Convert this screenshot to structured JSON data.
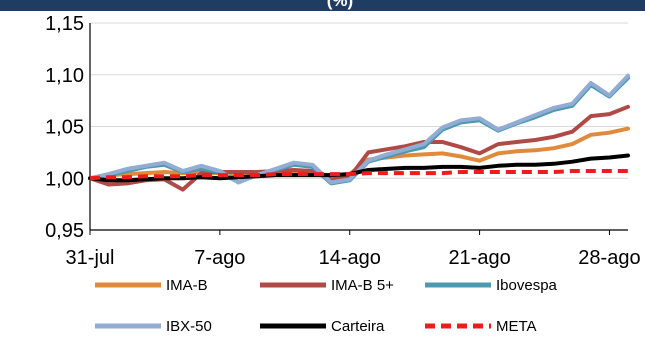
{
  "chart_data": {
    "type": "line",
    "title": "(%)",
    "xlabel": "",
    "ylabel": "",
    "x_ticks": [
      "31-jul",
      "7-ago",
      "14-ago",
      "21-ago",
      "28-ago"
    ],
    "y_ticks": [
      "0,95",
      "1,00",
      "1,05",
      "1,10",
      "1,15"
    ],
    "ylim": [
      0.95,
      1.15
    ],
    "x_range_days": [
      0,
      29
    ],
    "grid": "horizontal",
    "legend_position": "bottom",
    "x": [
      0,
      1,
      2,
      3,
      4,
      5,
      6,
      7,
      8,
      9,
      10,
      11,
      12,
      13,
      14,
      15,
      16,
      17,
      18,
      19,
      20,
      21,
      22,
      23,
      24,
      25,
      26,
      27,
      28,
      29
    ],
    "series": [
      {
        "name": "IMA-B",
        "color": "#e08a3c",
        "dashed": false,
        "width": 4,
        "values": [
          1.0,
          1.003,
          1.004,
          1.005,
          1.006,
          1.005,
          1.006,
          1.005,
          1.005,
          1.005,
          1.005,
          1.005,
          1.004,
          1.003,
          1.004,
          1.018,
          1.02,
          1.022,
          1.023,
          1.024,
          1.021,
          1.017,
          1.024,
          1.026,
          1.027,
          1.029,
          1.033,
          1.042,
          1.044,
          1.048
        ]
      },
      {
        "name": "IMA-B 5+",
        "color": "#b04a46",
        "dashed": false,
        "width": 4,
        "values": [
          1.0,
          0.994,
          0.995,
          0.998,
          0.999,
          0.989,
          1.005,
          1.006,
          1.006,
          1.006,
          1.007,
          1.008,
          1.007,
          0.999,
          1.001,
          1.025,
          1.028,
          1.031,
          1.035,
          1.035,
          1.03,
          1.024,
          1.033,
          1.035,
          1.037,
          1.04,
          1.045,
          1.06,
          1.062,
          1.069
        ]
      },
      {
        "name": "Ibovespa",
        "color": "#4b9ab0",
        "dashed": false,
        "width": 4,
        "values": [
          1.0,
          1.003,
          1.007,
          1.011,
          1.013,
          1.006,
          1.009,
          1.006,
          0.996,
          1.003,
          1.008,
          1.013,
          1.011,
          0.995,
          0.998,
          1.016,
          1.021,
          1.026,
          1.03,
          1.047,
          1.054,
          1.056,
          1.046,
          1.053,
          1.059,
          1.066,
          1.07,
          1.09,
          1.079,
          1.097
        ]
      },
      {
        "name": "IBX-50",
        "color": "#93acd4",
        "dashed": false,
        "width": 4,
        "values": [
          1.0,
          1.004,
          1.009,
          1.012,
          1.015,
          1.007,
          1.012,
          1.007,
          0.996,
          1.003,
          1.009,
          1.015,
          1.013,
          0.996,
          0.999,
          1.017,
          1.023,
          1.028,
          1.033,
          1.049,
          1.056,
          1.058,
          1.047,
          1.054,
          1.061,
          1.068,
          1.072,
          1.092,
          1.08,
          1.099
        ]
      },
      {
        "name": "Carteira",
        "color": "#000000",
        "dashed": false,
        "width": 4,
        "values": [
          1.0,
          0.998,
          0.998,
          0.999,
          1.0,
          1.0,
          1.001,
          1.0,
          1.001,
          1.002,
          1.003,
          1.003,
          1.003,
          1.003,
          1.004,
          1.008,
          1.009,
          1.01,
          1.01,
          1.011,
          1.011,
          1.01,
          1.012,
          1.013,
          1.013,
          1.014,
          1.016,
          1.019,
          1.02,
          1.022
        ]
      },
      {
        "name": "META",
        "color": "#ee1c1c",
        "dashed": true,
        "width": 4,
        "values": [
          1.0,
          1.001,
          1.001,
          1.002,
          1.002,
          1.002,
          1.003,
          1.003,
          1.003,
          1.003,
          1.004,
          1.004,
          1.004,
          1.004,
          1.004,
          1.005,
          1.005,
          1.005,
          1.005,
          1.005,
          1.006,
          1.006,
          1.006,
          1.006,
          1.006,
          1.006,
          1.007,
          1.007,
          1.007,
          1.007
        ]
      }
    ]
  }
}
